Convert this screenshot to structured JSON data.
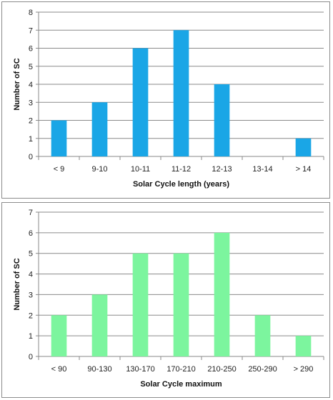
{
  "chart_data": [
    {
      "type": "bar",
      "title": "",
      "xlabel": "Solar Cycle length (years)",
      "ylabel": "Number of SC",
      "categories": [
        "< 9",
        "9-10",
        "10-11",
        "11-12",
        "12-13",
        "13-14",
        "> 14"
      ],
      "values": [
        2,
        3,
        6,
        7,
        4,
        0,
        1
      ],
      "ylim": [
        0,
        8
      ],
      "yticks": [
        "0",
        "1",
        "2",
        "3",
        "4",
        "5",
        "6",
        "7",
        "8"
      ],
      "grid": true,
      "legend": "none",
      "bar_color": "#1aa6e6"
    },
    {
      "type": "bar",
      "title": "",
      "xlabel": "Solar Cycle maximum",
      "ylabel": "Number of SC",
      "categories": [
        "< 90",
        "90-130",
        "130-170",
        "170-210",
        "210-250",
        "250-290",
        "> 290"
      ],
      "values": [
        2,
        3,
        5,
        5,
        6,
        2,
        1
      ],
      "ylim": [
        0,
        7
      ],
      "yticks": [
        "0",
        "1",
        "2",
        "3",
        "4",
        "5",
        "6",
        "7"
      ],
      "grid": true,
      "legend": "none",
      "bar_color": "#7cf59e"
    }
  ]
}
